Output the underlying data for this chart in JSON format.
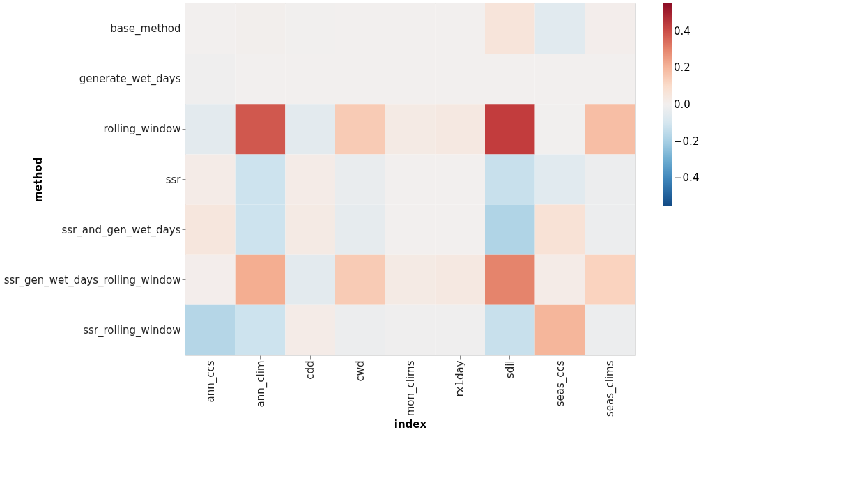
{
  "chart_data": {
    "type": "heatmap",
    "xlabel": "index",
    "ylabel": "method",
    "categories": [
      "ann_ccs",
      "ann_clim",
      "cdd",
      "cwd",
      "mon_clims",
      "rx1day",
      "sdii",
      "seas_ccs",
      "seas_clims"
    ],
    "y_categories": [
      "base_method",
      "generate_wet_days",
      "rolling_window",
      "ssr",
      "ssr_and_gen_wet_days",
      "ssr_gen_wet_days_rolling_window",
      "ssr_rolling_window"
    ],
    "cells": [
      [
        0.0,
        0.005,
        -0.005,
        0.0,
        0.0,
        0.0,
        0.06,
        -0.06,
        0.01
      ],
      [
        -0.01,
        0.0,
        0.0,
        0.0,
        0.0,
        0.0,
        0.0,
        0.0,
        0.0
      ],
      [
        -0.05,
        0.38,
        -0.05,
        0.15,
        0.03,
        0.04,
        0.43,
        -0.005,
        0.18
      ],
      [
        0.02,
        -0.12,
        0.02,
        -0.03,
        0.0,
        0.0,
        -0.13,
        -0.06,
        -0.02
      ],
      [
        0.05,
        -0.12,
        0.03,
        -0.04,
        0.0,
        0.0,
        -0.18,
        0.07,
        -0.02
      ],
      [
        0.01,
        0.22,
        -0.05,
        0.15,
        0.03,
        0.04,
        0.3,
        0.02,
        0.13
      ],
      [
        -0.17,
        -0.12,
        0.02,
        -0.02,
        -0.01,
        -0.01,
        -0.13,
        0.2,
        -0.02
      ]
    ],
    "clim": [
      -0.55,
      0.55
    ],
    "cticks": [
      {
        "value": 0.4,
        "label": "0.4"
      },
      {
        "value": 0.2,
        "label": "0.2"
      },
      {
        "value": 0,
        "label": "0.0"
      },
      {
        "value": -0.2,
        "label": "−0.2"
      },
      {
        "value": -0.4,
        "label": "−0.4"
      }
    ]
  }
}
